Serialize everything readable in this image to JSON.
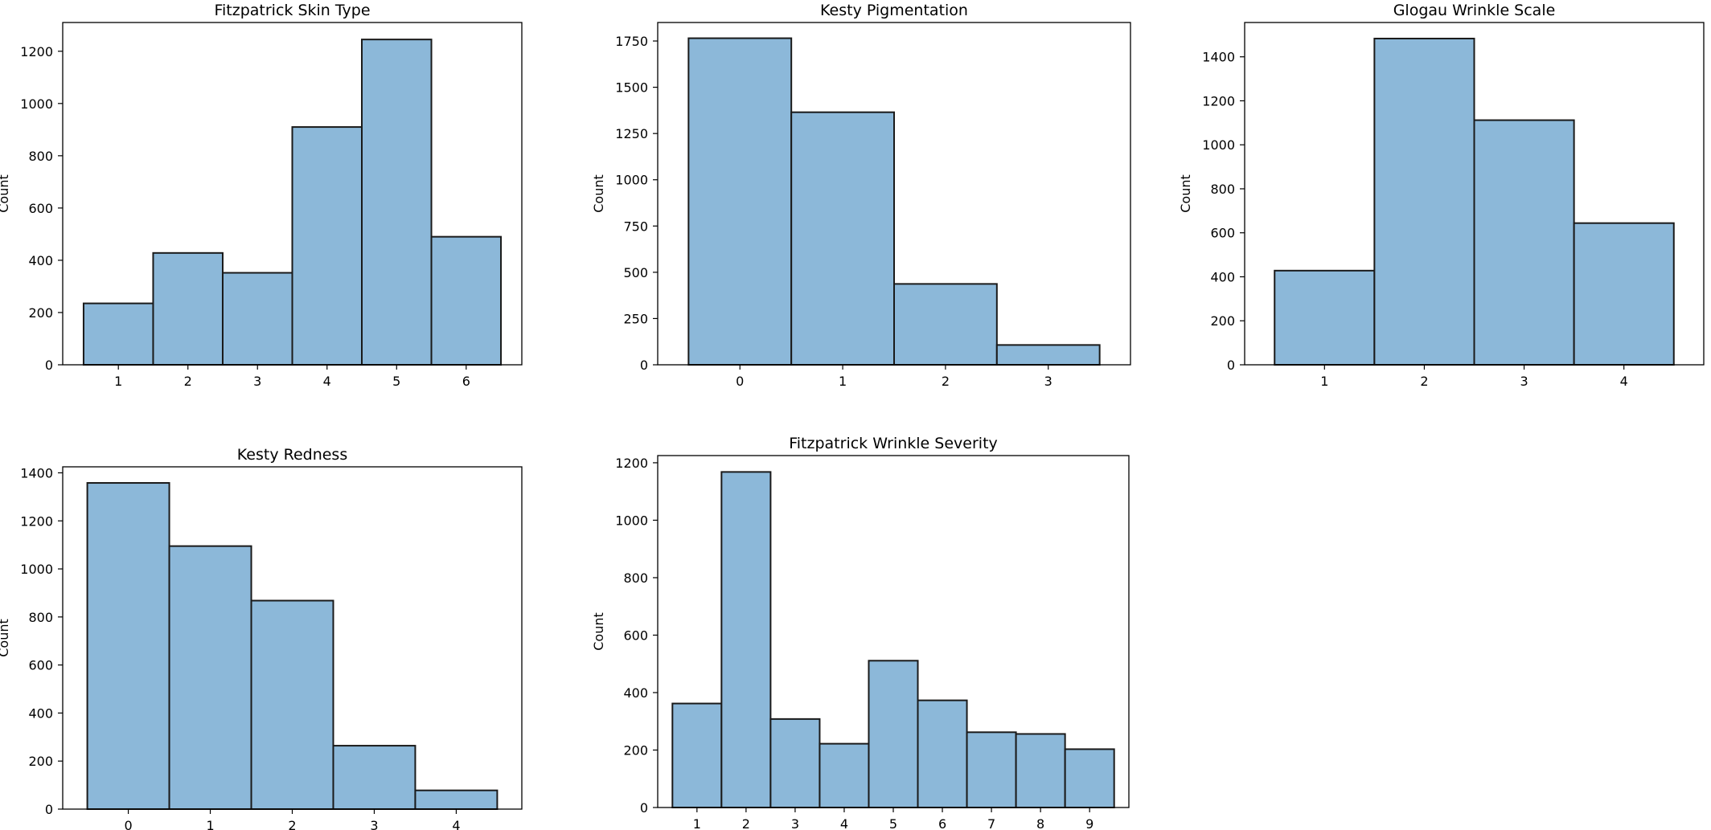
{
  "chart_data": [
    {
      "type": "bar",
      "title": "Fitzpatrick Skin Type",
      "xlabel": "",
      "ylabel": "Count",
      "categories": [
        "1",
        "2",
        "3",
        "4",
        "5",
        "6"
      ],
      "values": [
        235,
        428,
        352,
        910,
        1245,
        490
      ],
      "ylim": [
        0,
        1310
      ],
      "yticks": [
        0,
        200,
        400,
        600,
        800,
        1000,
        1200
      ],
      "grid": false,
      "bar_color": "#8cb8d9",
      "edge_color": "#1a1a1a"
    },
    {
      "type": "bar",
      "title": "Kesty Pigmentation",
      "xlabel": "",
      "ylabel": "Count",
      "categories": [
        "0",
        "1",
        "2",
        "3"
      ],
      "values": [
        1765,
        1365,
        437,
        107
      ],
      "ylim": [
        0,
        1850
      ],
      "yticks": [
        0,
        250,
        500,
        750,
        1000,
        1250,
        1500,
        1750
      ],
      "grid": false,
      "bar_color": "#8cb8d9",
      "edge_color": "#1a1a1a"
    },
    {
      "type": "bar",
      "title": "Glogau Wrinkle Scale",
      "xlabel": "",
      "ylabel": "Count",
      "categories": [
        "1",
        "2",
        "3",
        "4"
      ],
      "values": [
        428,
        1483,
        1112,
        644
      ],
      "ylim": [
        0,
        1556
      ],
      "yticks": [
        0,
        200,
        400,
        600,
        800,
        1000,
        1200,
        1400
      ],
      "grid": false,
      "bar_color": "#8cb8d9",
      "edge_color": "#1a1a1a"
    },
    {
      "type": "bar",
      "title": "Kesty Redness",
      "xlabel": "",
      "ylabel": "Count",
      "categories": [
        "0",
        "1",
        "2",
        "3",
        "4"
      ],
      "values": [
        1358,
        1095,
        868,
        264,
        78
      ],
      "ylim": [
        0,
        1425
      ],
      "yticks": [
        0,
        200,
        400,
        600,
        800,
        1000,
        1200,
        1400
      ],
      "grid": false,
      "bar_color": "#8cb8d9",
      "edge_color": "#1a1a1a"
    },
    {
      "type": "bar",
      "title": "Fitzpatrick Wrinkle Severity",
      "xlabel": "",
      "ylabel": "Count",
      "categories": [
        "1",
        "2",
        "3",
        "4",
        "5",
        "6",
        "7",
        "8",
        "9"
      ],
      "values": [
        362,
        1168,
        308,
        222,
        511,
        373,
        262,
        256,
        203
      ],
      "ylim": [
        0,
        1225
      ],
      "yticks": [
        0,
        200,
        400,
        600,
        800,
        1000,
        1200
      ],
      "grid": false,
      "bar_color": "#8cb8d9",
      "edge_color": "#1a1a1a"
    }
  ]
}
